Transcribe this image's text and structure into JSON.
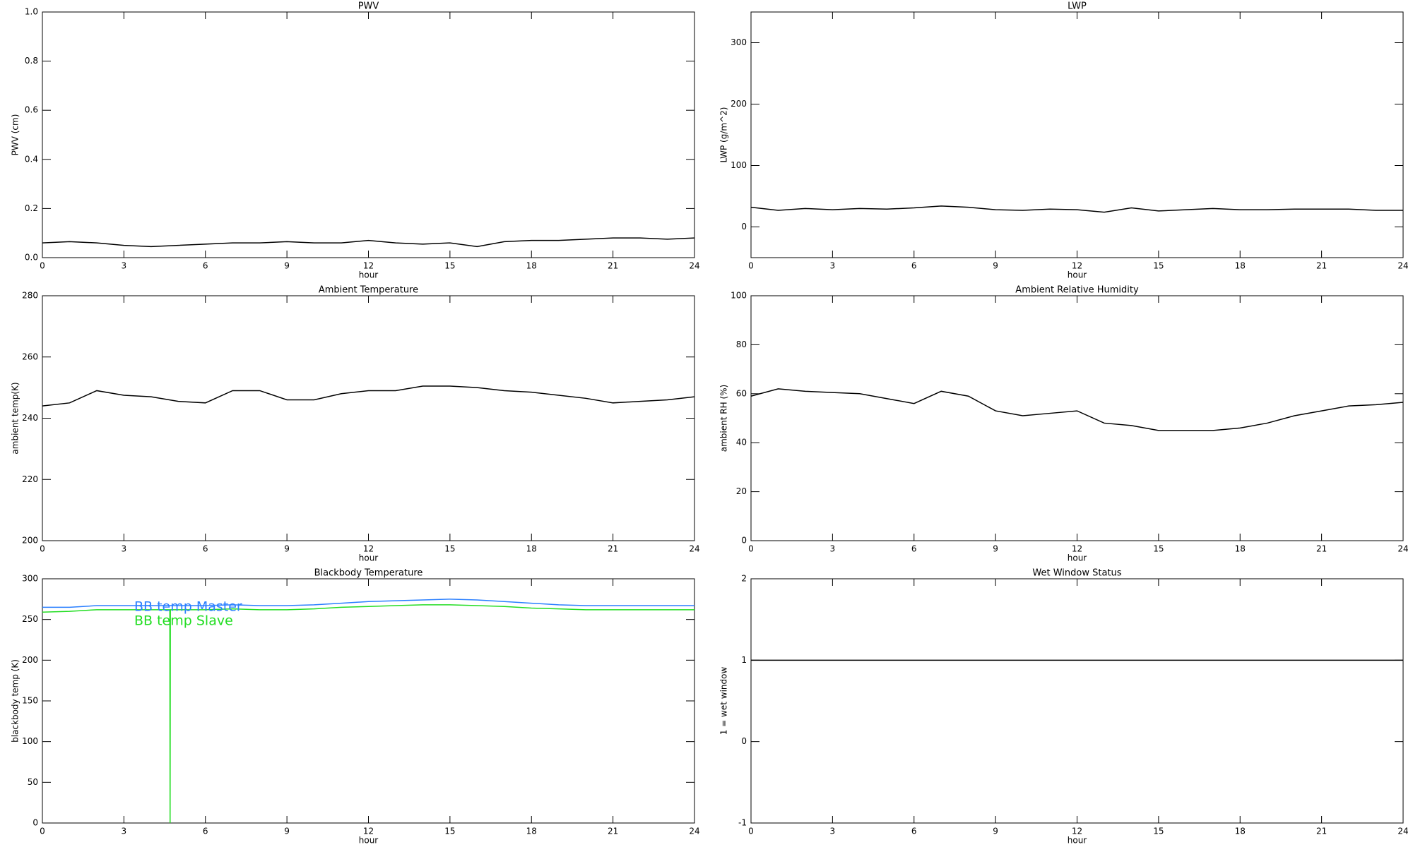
{
  "chart_data": [
    {
      "type": "line",
      "title": "PWV",
      "xlabel": "hour",
      "ylabel": "PWV (cm)",
      "x": [
        0,
        1,
        2,
        3,
        4,
        5,
        6,
        7,
        8,
        9,
        10,
        11,
        12,
        13,
        14,
        15,
        16,
        17,
        18,
        19,
        20,
        21,
        22,
        23,
        24
      ],
      "series": [
        {
          "color": "#000000",
          "values": [
            0.06,
            0.065,
            0.06,
            0.05,
            0.045,
            0.05,
            0.055,
            0.06,
            0.06,
            0.065,
            0.06,
            0.06,
            0.07,
            0.06,
            0.055,
            0.06,
            0.045,
            0.065,
            0.07,
            0.07,
            0.075,
            0.08,
            0.08,
            0.075,
            0.08
          ]
        }
      ],
      "xlim": [
        0,
        24
      ],
      "ylim": [
        0,
        1
      ],
      "xticks": [
        0,
        3,
        6,
        9,
        12,
        15,
        18,
        21,
        24
      ],
      "yticks": [
        {
          "value": 0,
          "label": "0.0"
        },
        0.2,
        0.4,
        0.6,
        0.8,
        {
          "value": 1,
          "label": "1.0"
        }
      ]
    },
    {
      "type": "line",
      "title": "LWP",
      "xlabel": "hour",
      "ylabel": "LWP (g/m^2)",
      "x": [
        0,
        1,
        2,
        3,
        4,
        5,
        6,
        7,
        8,
        9,
        10,
        11,
        12,
        13,
        14,
        15,
        16,
        17,
        18,
        19,
        20,
        21,
        22,
        23,
        24
      ],
      "series": [
        {
          "color": "#000000",
          "values": [
            32,
            27,
            30,
            28,
            30,
            29,
            31,
            34,
            32,
            28,
            27,
            29,
            28,
            24,
            31,
            26,
            28,
            30,
            28,
            28,
            29,
            29,
            29,
            27,
            27
          ]
        }
      ],
      "xlim": [
        0,
        24
      ],
      "ylim": [
        -50,
        350
      ],
      "xticks": [
        0,
        3,
        6,
        9,
        12,
        15,
        18,
        21,
        24
      ],
      "yticks": [
        0,
        100,
        200,
        300
      ]
    },
    {
      "type": "line",
      "title": "Ambient Temperature",
      "xlabel": "hour",
      "ylabel": "ambient temp(K)",
      "x": [
        0,
        1,
        2,
        3,
        4,
        5,
        6,
        7,
        8,
        9,
        10,
        11,
        12,
        13,
        14,
        15,
        16,
        17,
        18,
        19,
        20,
        21,
        22,
        23,
        24
      ],
      "series": [
        {
          "color": "#000000",
          "values": [
            244,
            245,
            249,
            247.5,
            247,
            245.5,
            245,
            249,
            249,
            246,
            246,
            248,
            249,
            249,
            250.5,
            250.5,
            250,
            249,
            248.5,
            247.5,
            246.5,
            245,
            245.5,
            246,
            247
          ]
        }
      ],
      "xlim": [
        0,
        24
      ],
      "ylim": [
        200,
        280
      ],
      "xticks": [
        0,
        3,
        6,
        9,
        12,
        15,
        18,
        21,
        24
      ],
      "yticks": [
        200,
        220,
        240,
        260,
        280
      ]
    },
    {
      "type": "line",
      "title": "Ambient Relative Humidity",
      "xlabel": "hour",
      "ylabel": "ambient RH (%)",
      "x": [
        0,
        1,
        2,
        3,
        4,
        5,
        6,
        7,
        8,
        9,
        10,
        11,
        12,
        13,
        14,
        15,
        16,
        17,
        18,
        19,
        20,
        21,
        22,
        23,
        24
      ],
      "series": [
        {
          "color": "#000000",
          "values": [
            59,
            62,
            61,
            60.5,
            60,
            58,
            56,
            61,
            59,
            53,
            51,
            52,
            53,
            48,
            47,
            45,
            45,
            45,
            46,
            48,
            51,
            53,
            55,
            55.5,
            56.5
          ]
        }
      ],
      "xlim": [
        0,
        24
      ],
      "ylim": [
        0,
        100
      ],
      "xticks": [
        0,
        3,
        6,
        9,
        12,
        15,
        18,
        21,
        24
      ],
      "yticks": [
        0,
        20,
        40,
        60,
        80,
        100
      ]
    },
    {
      "type": "line",
      "title": "Blackbody Temperature",
      "xlabel": "hour",
      "ylabel": "blackbody temp (K)",
      "x": [
        0,
        1,
        2,
        3,
        4,
        4.69,
        4.7,
        4.71,
        5,
        6,
        7,
        8,
        9,
        10,
        11,
        12,
        13,
        14,
        15,
        16,
        17,
        18,
        19,
        20,
        21,
        22,
        23,
        24
      ],
      "series": [
        {
          "name": "BB temp Master",
          "color": "#2a7fff",
          "values": [
            265,
            265,
            267,
            267,
            267,
            267,
            267,
            267,
            267,
            267,
            268,
            267,
            267,
            268,
            270,
            272,
            273,
            274,
            275,
            274,
            272,
            270,
            268,
            267,
            267,
            267,
            267,
            267
          ]
        },
        {
          "name": "BB temp Slave",
          "color": "#22dd22",
          "values": [
            259,
            260,
            262,
            262,
            262,
            262,
            0,
            262,
            262,
            262,
            263,
            262,
            262,
            263,
            265,
            266,
            267,
            268,
            268,
            267,
            266,
            264,
            263,
            262,
            262,
            262,
            262,
            262
          ]
        }
      ],
      "xlim": [
        0,
        24
      ],
      "ylim": [
        0,
        300
      ],
      "xticks": [
        0,
        3,
        6,
        9,
        12,
        15,
        18,
        21,
        24
      ],
      "yticks": [
        0,
        50,
        100,
        150,
        200,
        250,
        300
      ]
    },
    {
      "type": "line",
      "title": "Wet Window Status",
      "xlabel": "hour",
      "ylabel": "1 = wet window",
      "x": [
        0,
        24
      ],
      "series": [
        {
          "color": "#000000",
          "values": [
            1,
            1
          ]
        }
      ],
      "xlim": [
        0,
        24
      ],
      "ylim": [
        -1,
        2
      ],
      "xticks": [
        0,
        3,
        6,
        9,
        12,
        15,
        18,
        21,
        24
      ],
      "yticks": [
        -1,
        0,
        1,
        2
      ]
    }
  ]
}
